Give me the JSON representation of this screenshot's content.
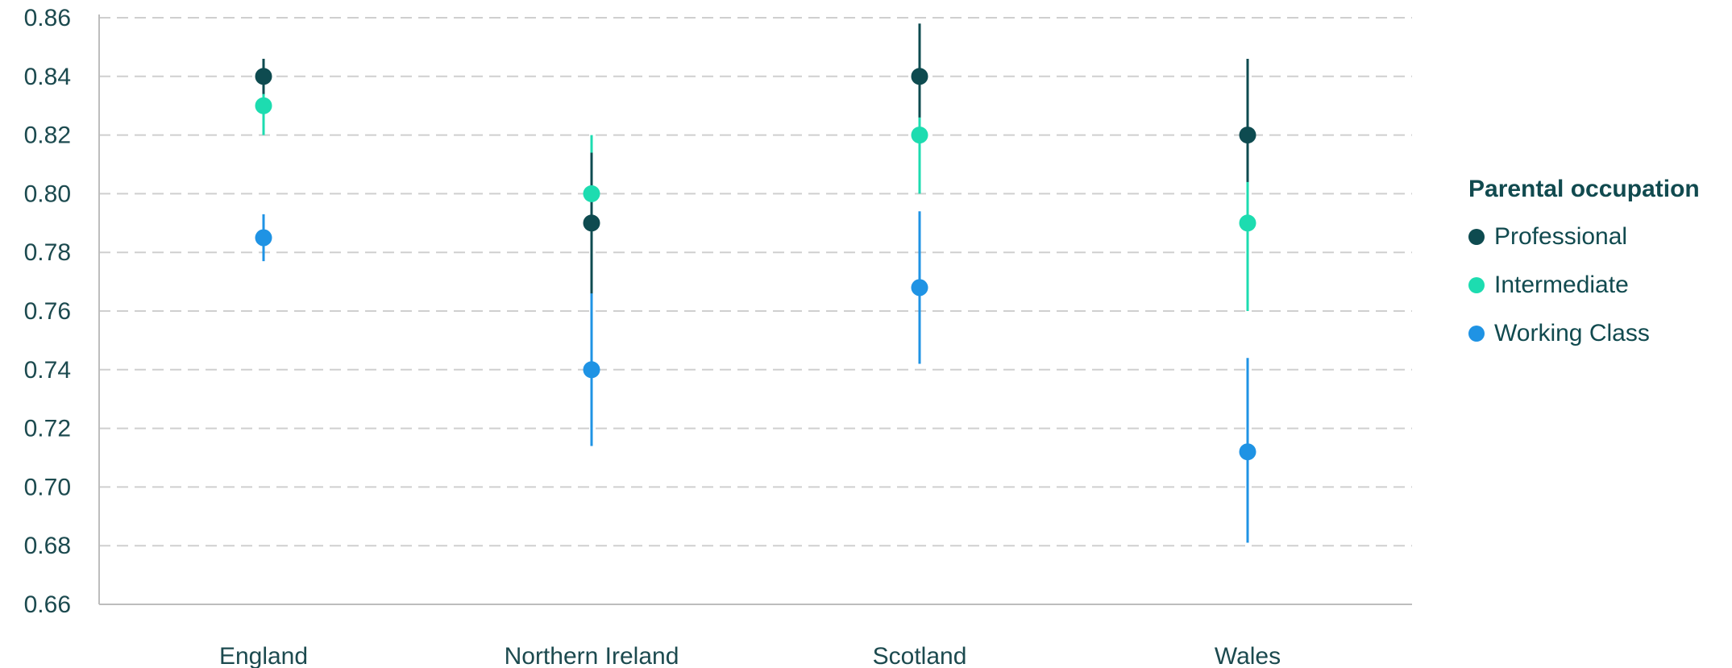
{
  "chart_data": {
    "type": "scatter",
    "title": "",
    "xlabel": "",
    "ylabel": "",
    "categories": [
      "England",
      "Northern Ireland",
      "Scotland",
      "Wales"
    ],
    "ylim": [
      0.66,
      0.86
    ],
    "yticks": [
      "0.66",
      "0.68",
      "0.70",
      "0.72",
      "0.74",
      "0.76",
      "0.78",
      "0.80",
      "0.82",
      "0.84",
      "0.86"
    ],
    "grid": true,
    "legend_placement": "right",
    "series": [
      {
        "name": "Professional",
        "color": "#0e4b50",
        "values": [
          0.84,
          0.79,
          0.84,
          0.82
        ],
        "lower": [
          0.834,
          0.766,
          0.826,
          0.804
        ],
        "upper": [
          0.846,
          0.814,
          0.858,
          0.846
        ]
      },
      {
        "name": "Intermediate",
        "color": "#1ddcb0",
        "values": [
          0.83,
          0.8,
          0.82,
          0.79
        ],
        "lower": [
          0.82,
          0.786,
          0.8,
          0.76
        ],
        "upper": [
          0.838,
          0.82,
          0.838,
          0.822
        ]
      },
      {
        "name": "Working Class",
        "color": "#1f93e4",
        "values": [
          0.785,
          0.74,
          0.768,
          0.712
        ],
        "lower": [
          0.777,
          0.714,
          0.742,
          0.681
        ],
        "upper": [
          0.793,
          0.768,
          0.794,
          0.744
        ]
      }
    ]
  },
  "legend": {
    "title": "Parental occupation",
    "items": [
      "Professional",
      "Intermediate",
      "Working Class"
    ]
  }
}
